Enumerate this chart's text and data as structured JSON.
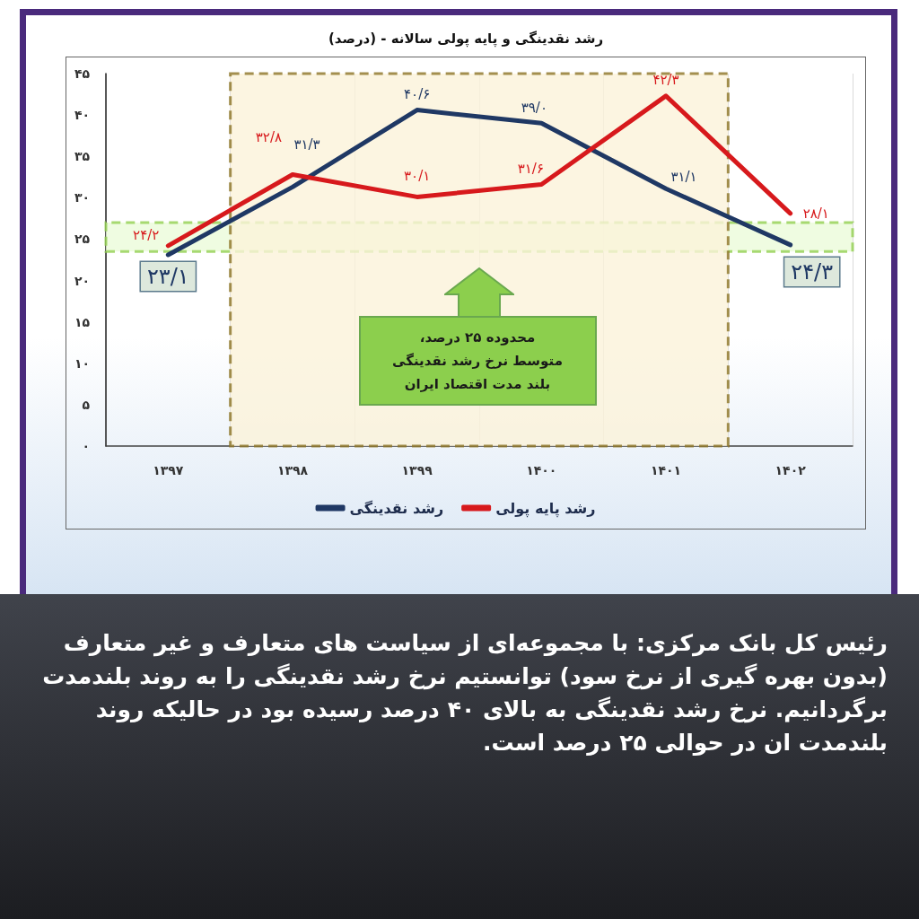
{
  "chart_data": {
    "type": "line",
    "title": "رشد نقدینگی و پایه پولی سالانه - (درصد)",
    "categories": [
      "۱۳۹۷",
      "۱۳۹۸",
      "۱۳۹۹",
      "۱۴۰۰",
      "۱۴۰۱",
      "۱۴۰۲"
    ],
    "series": [
      {
        "name": "رشد نقدینگی",
        "color": "#1f3864",
        "values": [
          23.1,
          31.3,
          40.6,
          39.0,
          31.1,
          24.3
        ],
        "value_labels": [
          "۲۳/۱",
          "۳۱/۳",
          "۴۰/۶",
          "۳۹/۰",
          "۳۱/۱",
          "۲۴/۳"
        ]
      },
      {
        "name": "رشد پایه پولی",
        "color": "#d7191c",
        "values": [
          24.2,
          32.8,
          30.1,
          31.6,
          42.3,
          28.1
        ],
        "value_labels": [
          "۲۴/۲",
          "۳۲/۸",
          "۳۰/۱",
          "۳۱/۶",
          "۴۲/۳",
          "۲۸/۱"
        ]
      }
    ],
    "ylim": [
      0,
      45
    ],
    "yticks": [
      {
        "value": 0,
        "label": "۰"
      },
      {
        "value": 5,
        "label": "۵"
      },
      {
        "value": 10,
        "label": "۱۰"
      },
      {
        "value": 15,
        "label": "۱۵"
      },
      {
        "value": 20,
        "label": "۲۰"
      },
      {
        "value": 25,
        "label": "۲۵"
      },
      {
        "value": 30,
        "label": "۳۰"
      },
      {
        "value": 35,
        "label": "۳۵"
      },
      {
        "value": 40,
        "label": "۴۰"
      },
      {
        "value": 45,
        "label": "۴۵"
      }
    ],
    "grid": "x",
    "legend": "bottom",
    "marker": "none",
    "line_style": "solid",
    "bands": [
      {
        "axis": "y",
        "from": 23.5,
        "to": 27,
        "color": "#92d050"
      },
      {
        "axis": "x",
        "from": "۱۳۹۸",
        "to": "۱۴۰۱",
        "color": "#8c7426"
      }
    ],
    "annotations": [
      "محدوده ۲۵ درصد،\nمتوسط نرخ رشد نقدینگی\nبلند مدت اقتصاد ایران",
      "رئیس کل بانک مرکزی: با مجموعه‌ای از سیاست های متعارف و غیر متعارف (بدون بهره گیری از نرخ سود) توانستیم نرخ رشد نقدینگی را به روند بلندمدت برگردانیم. نرخ رشد نقدینگی به بالای ۴۰ درصد رسیده بود در حالیکه روند بلندمدت ان در حوالی ۲۵ درصد است."
    ]
  }
}
